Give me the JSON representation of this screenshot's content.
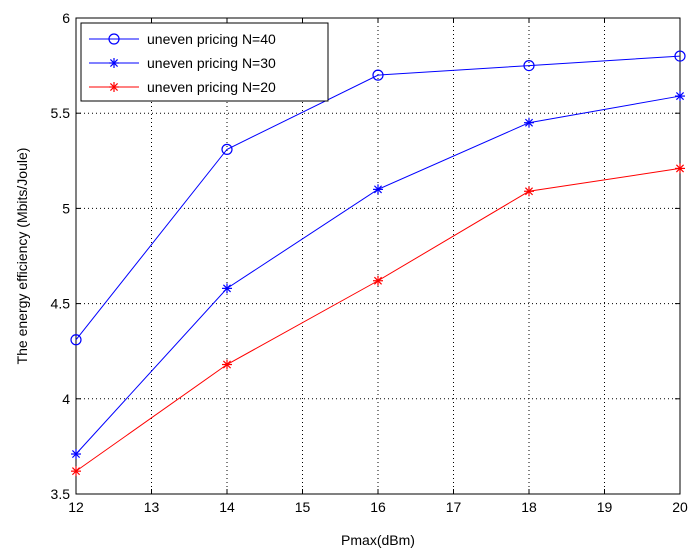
{
  "chart_data": {
    "type": "line",
    "xlabel": "Pmax(dBm)",
    "ylabel": "The energy efficiency (Mbits/Joule)",
    "xlim": [
      12,
      20
    ],
    "ylim": [
      3.5,
      6
    ],
    "x_ticks": [
      "12",
      "13",
      "14",
      "15",
      "16",
      "17",
      "18",
      "19",
      "20"
    ],
    "y_ticks": [
      "3.5",
      "4",
      "4.5",
      "5",
      "5.5",
      "6"
    ],
    "grid": true,
    "legend_position": "top-left",
    "series": [
      {
        "name": "uneven pricing N=40",
        "color": "#0000ff",
        "marker": "circle",
        "x": [
          12,
          14,
          16,
          18,
          20
        ],
        "y": [
          4.31,
          5.31,
          5.7,
          5.75,
          5.8
        ]
      },
      {
        "name": "uneven pricing N=30",
        "color": "#0000ff",
        "marker": "star",
        "x": [
          12,
          14,
          16,
          18,
          20
        ],
        "y": [
          3.71,
          4.58,
          5.1,
          5.45,
          5.59
        ]
      },
      {
        "name": "uneven pricing N=20",
        "color": "#ff0000",
        "marker": "star",
        "x": [
          12,
          14,
          16,
          18,
          20
        ],
        "y": [
          3.62,
          4.18,
          4.62,
          5.09,
          5.21
        ]
      }
    ]
  }
}
